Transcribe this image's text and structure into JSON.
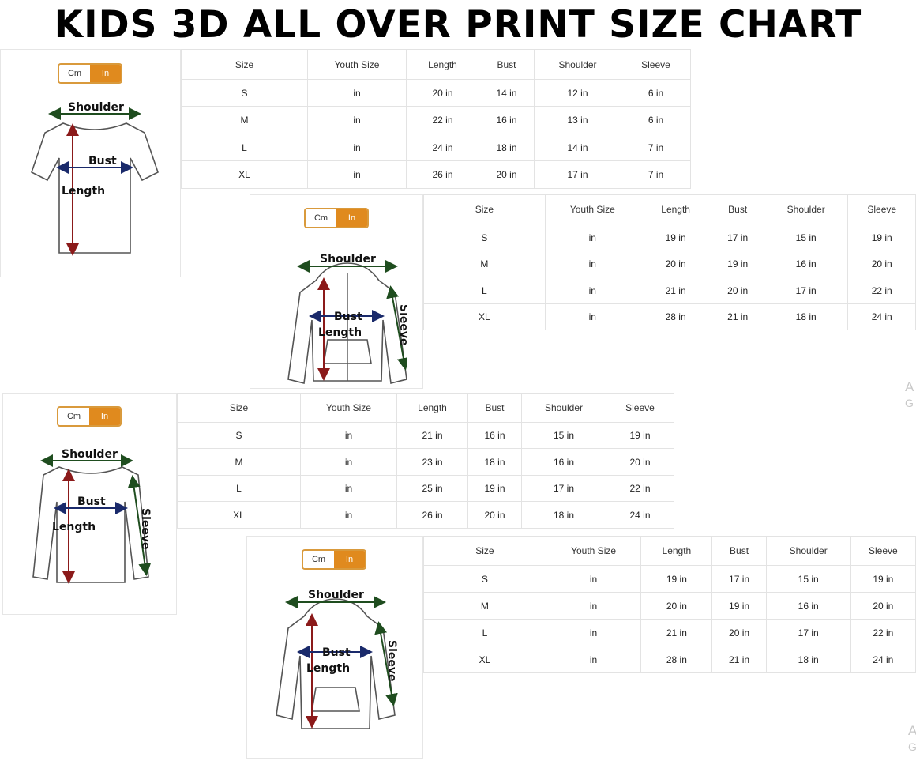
{
  "title": "KIDS 3D ALL OVER PRINT SIZE CHART",
  "toggle": {
    "cm": "Cm",
    "in": "In"
  },
  "colors": {
    "accent": "#e08a1e",
    "length_arrow": "#8b1a1a",
    "bust_arrow": "#1a2a6b",
    "shoulder_arrow": "#1f4d1f"
  },
  "labels": {
    "shoulder": "Shoulder",
    "bust": "Bust",
    "length": "Length",
    "sleeve": "Sleeve"
  },
  "headers": [
    "Size",
    "Youth Size",
    "Length",
    "Bust",
    "Shoulder",
    "Sleeve"
  ],
  "charts": [
    {
      "garment": "t-shirt",
      "rows": [
        [
          "S",
          "in",
          "20 in",
          "14 in",
          "12 in",
          "6 in"
        ],
        [
          "M",
          "in",
          "22 in",
          "16 in",
          "13 in",
          "6 in"
        ],
        [
          "L",
          "in",
          "24 in",
          "18 in",
          "14 in",
          "7 in"
        ],
        [
          "XL",
          "in",
          "26 in",
          "20 in",
          "17 in",
          "7 in"
        ]
      ]
    },
    {
      "garment": "zip-hoodie",
      "rows": [
        [
          "S",
          "in",
          "19 in",
          "17 in",
          "15 in",
          "19 in"
        ],
        [
          "M",
          "in",
          "20 in",
          "19 in",
          "16 in",
          "20 in"
        ],
        [
          "L",
          "in",
          "21 in",
          "20 in",
          "17 in",
          "22 in"
        ],
        [
          "XL",
          "in",
          "28 in",
          "21 in",
          "18 in",
          "24 in"
        ]
      ]
    },
    {
      "garment": "long-sleeve",
      "rows": [
        [
          "S",
          "in",
          "21 in",
          "16 in",
          "15 in",
          "19 in"
        ],
        [
          "M",
          "in",
          "23 in",
          "18 in",
          "16 in",
          "20 in"
        ],
        [
          "L",
          "in",
          "25 in",
          "19 in",
          "17 in",
          "22 in"
        ],
        [
          "XL",
          "in",
          "26 in",
          "20 in",
          "18 in",
          "24 in"
        ]
      ]
    },
    {
      "garment": "pullover-hoodie",
      "rows": [
        [
          "S",
          "in",
          "19 in",
          "17 in",
          "15 in",
          "19 in"
        ],
        [
          "M",
          "in",
          "20 in",
          "19 in",
          "16 in",
          "20 in"
        ],
        [
          "L",
          "in",
          "21 in",
          "20 in",
          "17 in",
          "22 in"
        ],
        [
          "XL",
          "in",
          "28 in",
          "21 in",
          "18 in",
          "24 in"
        ]
      ]
    }
  ],
  "watermark": {
    "line1": "A",
    "line2": "G"
  }
}
